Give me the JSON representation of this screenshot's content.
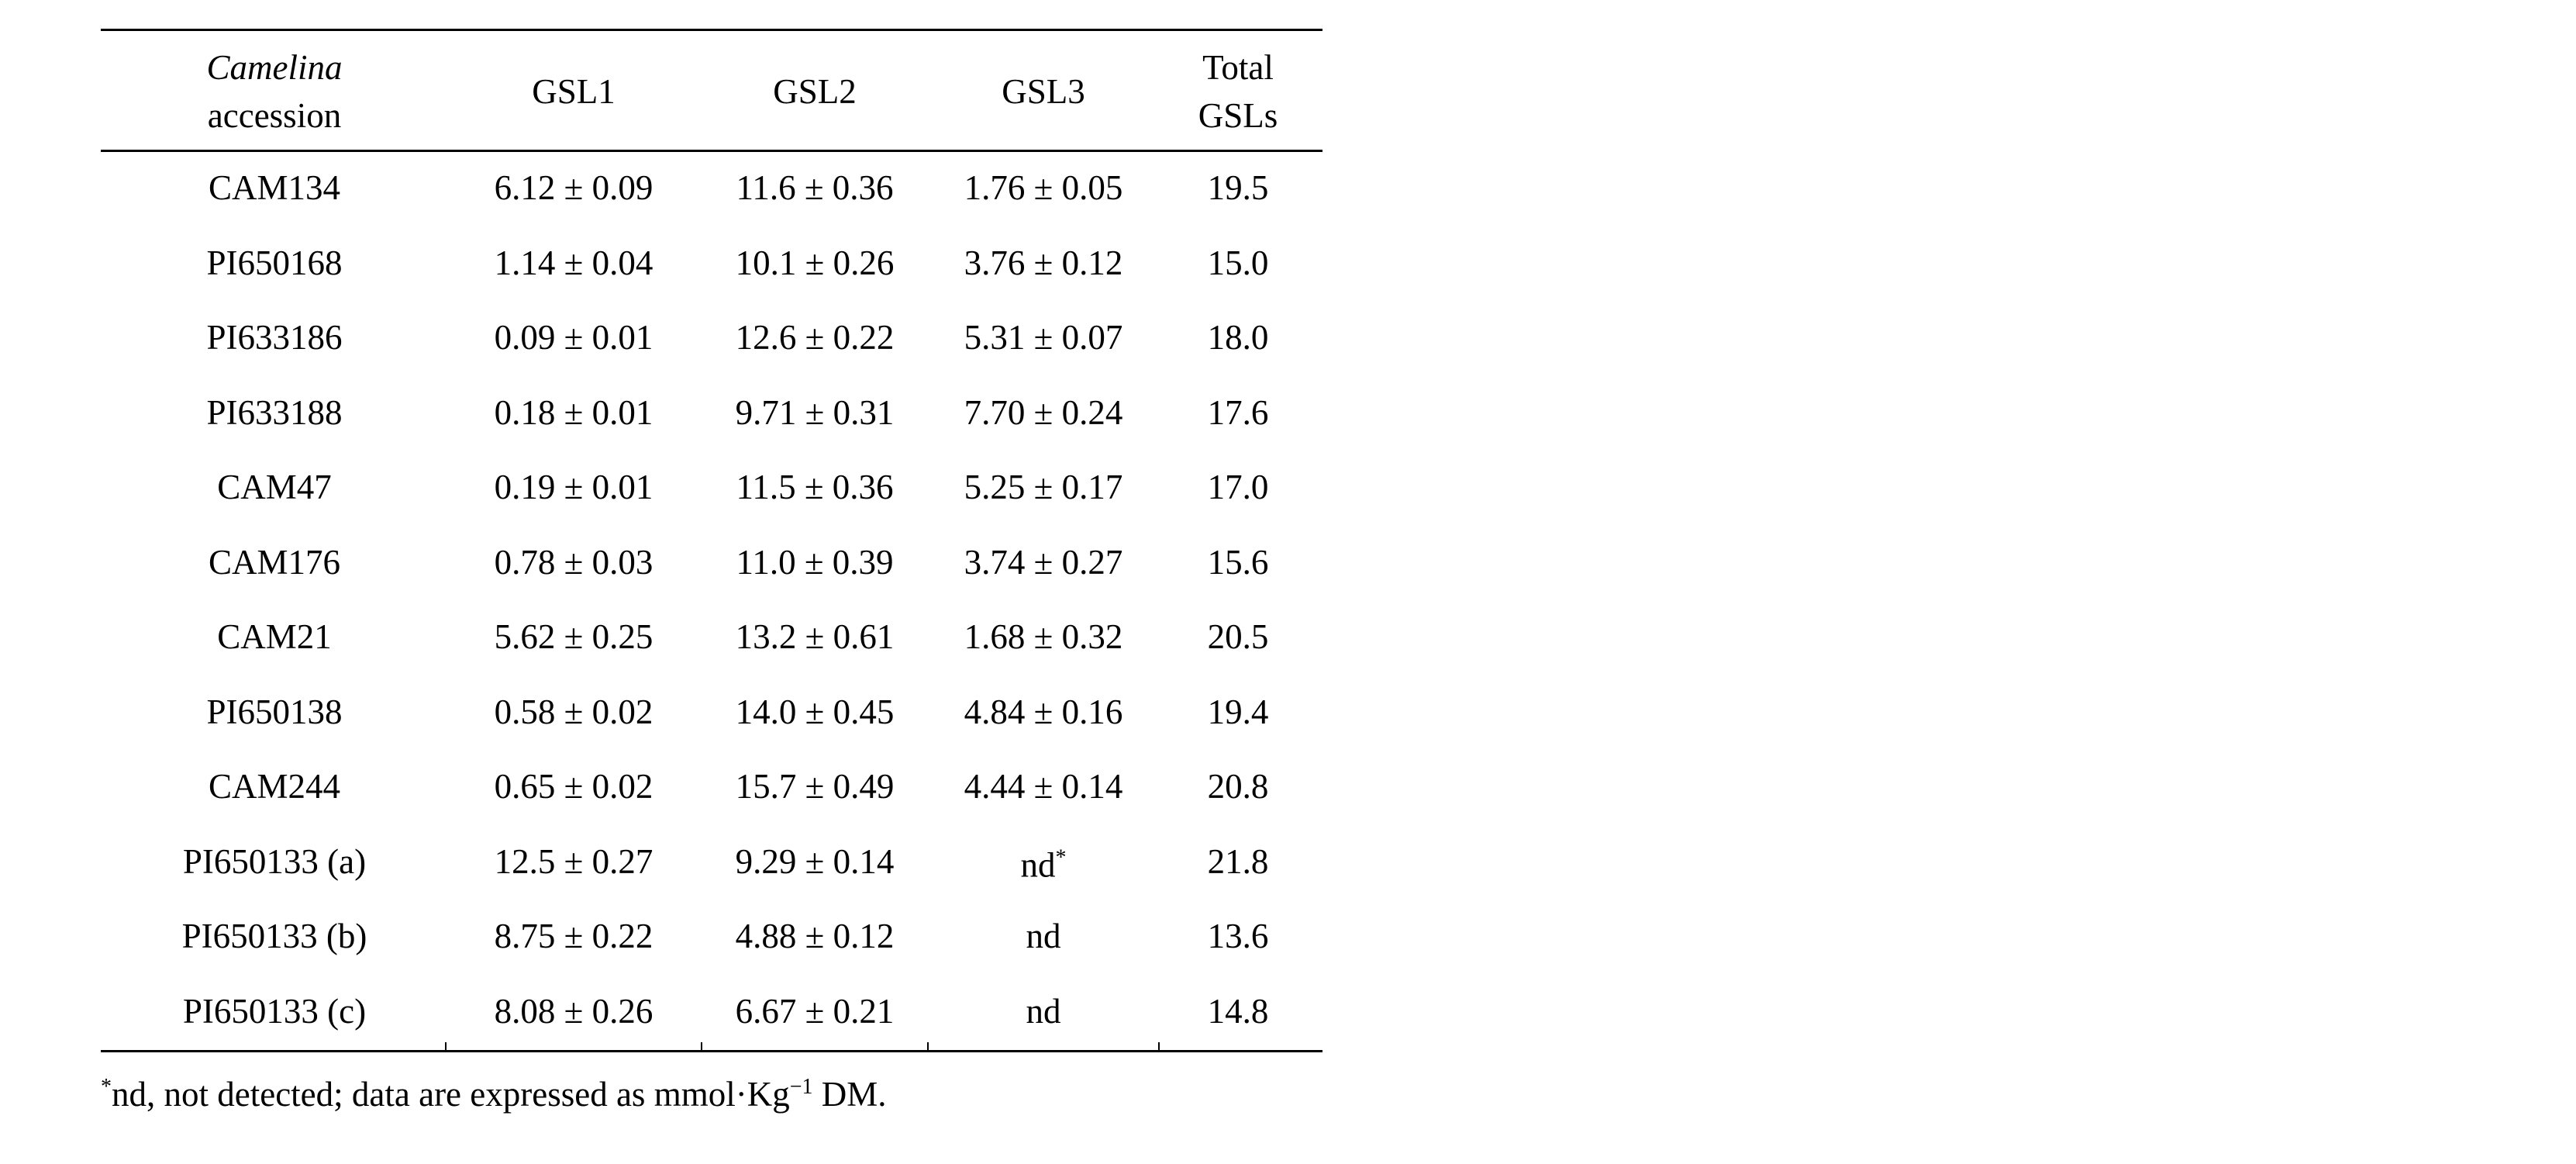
{
  "table": {
    "header": [
      [
        "Camelina",
        "accession"
      ],
      [
        "GSL1"
      ],
      [
        "GSL2"
      ],
      [
        "GSL3"
      ],
      [
        "Total",
        "GSLs"
      ]
    ],
    "rows": [
      [
        "CAM134",
        "6.12 ± 0.09",
        "11.6 ± 0.36",
        "1.76 ± 0.05",
        "19.5"
      ],
      [
        "PI650168",
        "1.14 ± 0.04",
        "10.1 ± 0.26",
        "3.76 ± 0.12",
        "15.0"
      ],
      [
        "PI633186",
        "0.09 ± 0.01",
        "12.6 ± 0.22",
        "5.31 ± 0.07",
        "18.0"
      ],
      [
        "PI633188",
        "0.18 ± 0.01",
        "9.71 ± 0.31",
        "7.70 ± 0.24",
        "17.6"
      ],
      [
        "CAM47",
        "0.19 ± 0.01",
        "11.5 ± 0.36",
        "5.25 ± 0.17",
        "17.0"
      ],
      [
        "CAM176",
        "0.78 ± 0.03",
        "11.0 ± 0.39",
        "3.74 ± 0.27",
        "15.6"
      ],
      [
        "CAM21",
        "5.62 ± 0.25",
        "13.2 ± 0.61",
        "1.68 ± 0.32",
        "20.5"
      ],
      [
        "PI650138",
        "0.58 ± 0.02",
        "14.0 ± 0.45",
        "4.84 ± 0.16",
        "19.4"
      ],
      [
        "CAM244",
        "0.65 ± 0.02",
        "15.7 ± 0.49",
        "4.44 ± 0.14",
        "20.8"
      ],
      [
        "PI650133 (a)",
        "12.5 ± 0.27",
        "9.29 ± 0.14",
        {
          "text": "nd",
          "mark": "*"
        },
        "21.8"
      ],
      [
        "PI650133 (b)",
        "8.75 ± 0.22",
        "4.88 ± 0.12",
        "nd",
        "13.6"
      ],
      [
        "PI650133 (c)",
        "8.08 ± 0.26",
        "6.67 ± 0.21",
        "nd",
        "14.8"
      ]
    ],
    "footnote": {
      "mark": "*",
      "text": "nd, not detected; data are expressed as mmol·Kg",
      "sup": "−1",
      "end": " DM."
    }
  }
}
